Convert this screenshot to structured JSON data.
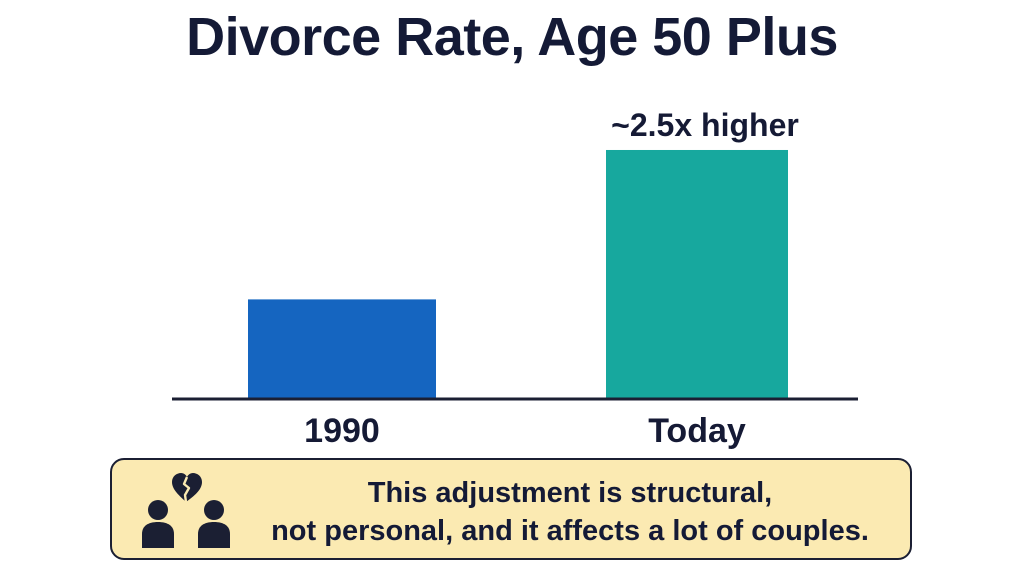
{
  "title": "Divorce Rate, Age 50 Plus",
  "chart_data": {
    "type": "bar",
    "categories": [
      "1990",
      "Today"
    ],
    "values": [
      1,
      2.5
    ],
    "value_unit": "relative (1990 = 1)",
    "colors": [
      "#1565c0",
      "#17a89e"
    ],
    "annotations": [
      {
        "category": "Today",
        "text": "~2.5x higher"
      }
    ],
    "xlabel": "",
    "ylabel": "",
    "ylim": [
      0,
      2.55
    ],
    "y_axis_shown": false,
    "grid": false
  },
  "callout": {
    "icon": "broken-heart-couple-icon",
    "line1": "This adjustment is structural,",
    "line2": "not personal, and it affects a lot of couples.",
    "background": "#fbeab2"
  }
}
